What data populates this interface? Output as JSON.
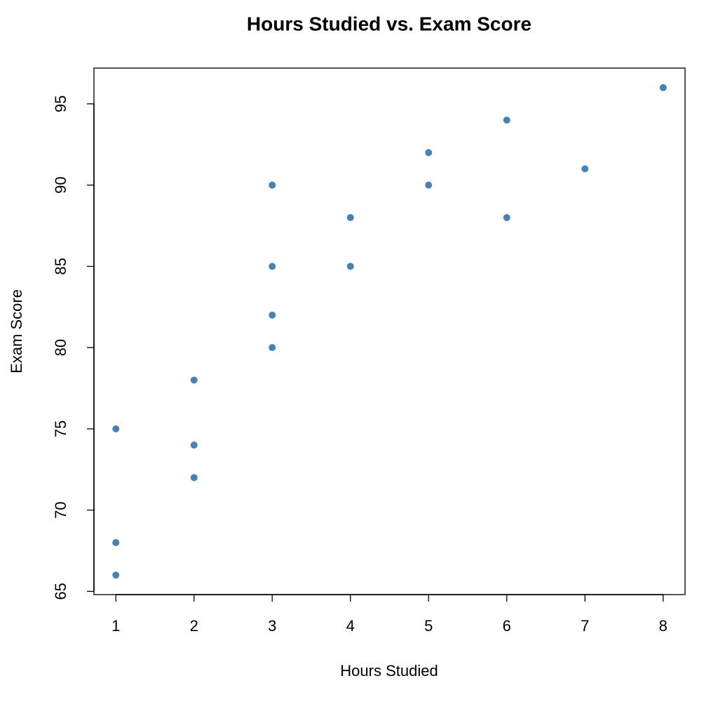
{
  "chart_data": {
    "type": "scatter",
    "title": "Hours Studied vs. Exam Score",
    "x_label": "Hours Studied",
    "y_label": "Exam Score",
    "x": [
      1,
      1,
      1,
      2,
      2,
      2,
      3,
      3,
      3,
      3,
      4,
      4,
      5,
      5,
      6,
      6,
      7,
      8
    ],
    "values": [
      66,
      68,
      75,
      72,
      74,
      78,
      80,
      82,
      85,
      90,
      85,
      88,
      90,
      92,
      88,
      94,
      91,
      96
    ],
    "color": "#4682b4",
    "xlim": [
      0.72,
      8.28
    ],
    "ylim": [
      64.8,
      97.2
    ],
    "xticks": [
      1,
      2,
      3,
      4,
      5,
      6,
      7,
      8
    ],
    "yticks": [
      65,
      70,
      75,
      80,
      85,
      90,
      95
    ]
  }
}
